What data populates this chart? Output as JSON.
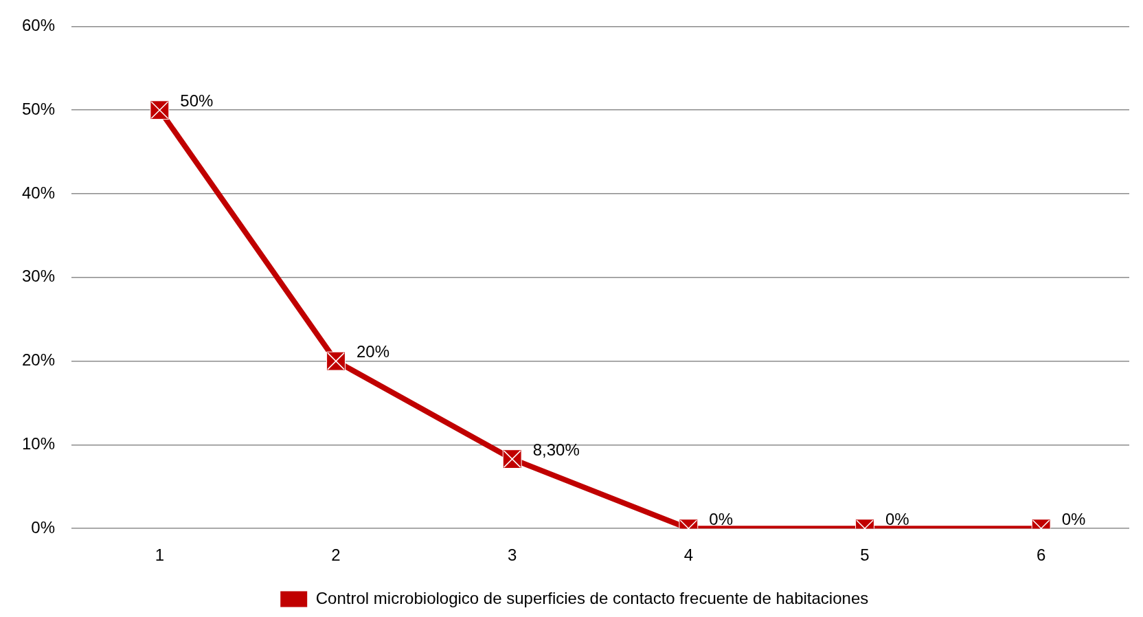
{
  "chart_data": {
    "type": "line",
    "categories": [
      "1",
      "2",
      "3",
      "4",
      "5",
      "6"
    ],
    "series": [
      {
        "name": "Control microbiologico de superficies de contacto frecuente de habitaciones",
        "color": "#c00000",
        "values": [
          50,
          20,
          8.3,
          0,
          0,
          0
        ],
        "value_labels": [
          "50%",
          "20%",
          "8,30%",
          "0%",
          "0%",
          "0%"
        ]
      }
    ],
    "ylim": [
      0,
      60
    ],
    "yticks": [
      {
        "value": 0,
        "label": "0%"
      },
      {
        "value": 10,
        "label": "10%"
      },
      {
        "value": 20,
        "label": "20%"
      },
      {
        "value": 30,
        "label": "30%"
      },
      {
        "value": 40,
        "label": "40%"
      },
      {
        "value": 50,
        "label": "50%"
      },
      {
        "value": 60,
        "label": "60%"
      }
    ],
    "grid": "y",
    "legend": "bottom",
    "marker": "square",
    "line_style": "solid"
  }
}
